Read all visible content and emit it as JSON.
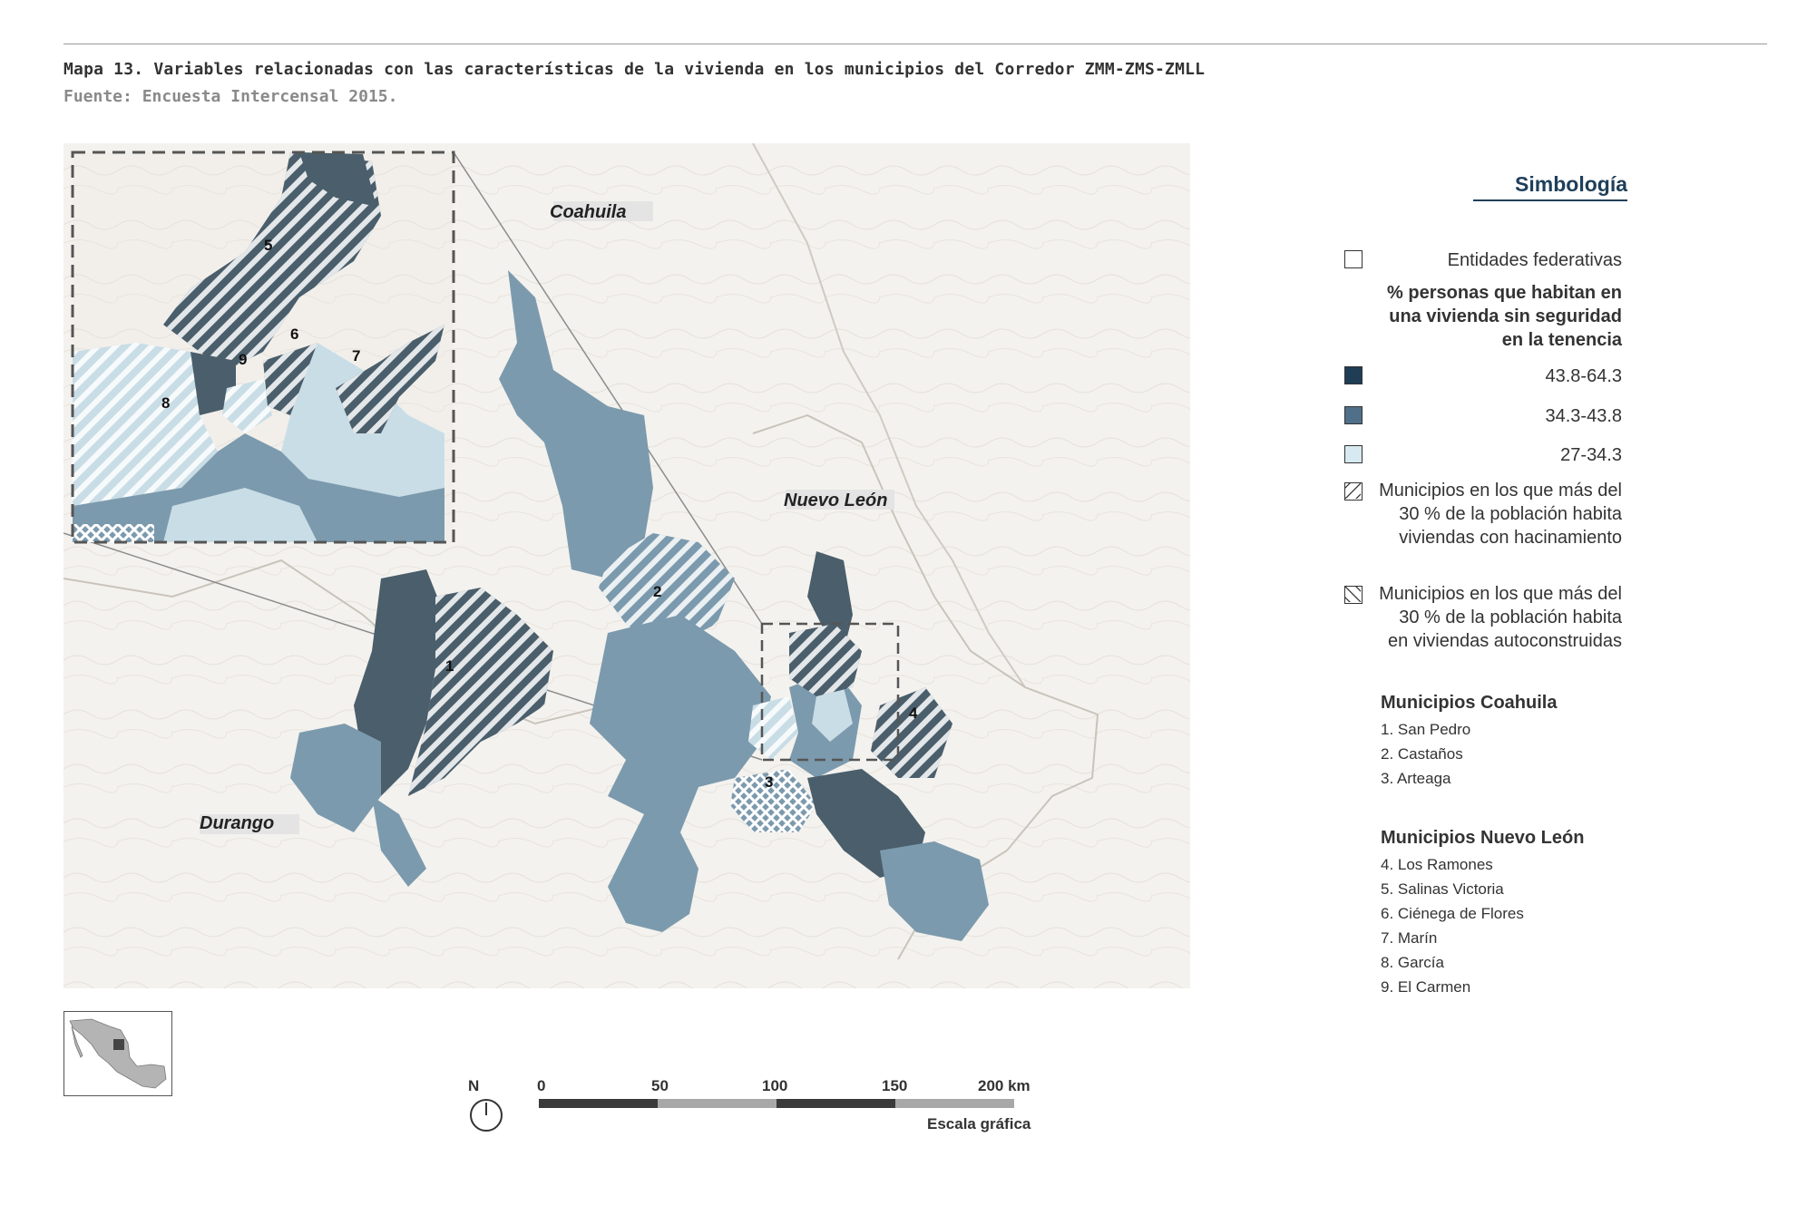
{
  "header": {
    "caption": "Mapa 13. Variables relacionadas con las características de la vivienda en los municipios del Corredor ZMM-ZMS-ZMLL",
    "source": "Fuente: Encuesta Intercensal 2015."
  },
  "map": {
    "states": [
      "Coahuila",
      "Nuevo León",
      "Durango"
    ],
    "municipio_numbers": [
      "1",
      "2",
      "3",
      "4",
      "5",
      "6",
      "7",
      "8",
      "9"
    ]
  },
  "legend": {
    "title": "Simbología",
    "entidades": "Entidades federativas",
    "tenure_heading": "% personas que habitan en una vivienda sin seguridad en la tenencia",
    "classes": [
      {
        "label": "43.8-64.3",
        "color": "#1f3d55"
      },
      {
        "label": "34.3-43.8",
        "color": "#4f7088"
      },
      {
        "label": "27-34.3",
        "color": "#d7e9f1"
      }
    ],
    "hatch_crowding": "Municipios en los que más del 30 % de la población habita viviendas con hacinamiento",
    "hatch_selfbuilt": "Municipios en los que más del 30 % de la población habita en viviendas autoconstruidas"
  },
  "municipios": {
    "coahuila_heading": "Municipios Coahuila",
    "coahuila": [
      "1. San Pedro",
      "2. Castaños",
      "3. Arteaga"
    ],
    "nl_heading": "Municipios Nuevo León",
    "nuevo_leon": [
      "4. Los Ramones",
      "5. Salinas Victoria",
      "6. Ciénega de Flores",
      "7. Marín",
      "8. García",
      "9. El Carmen"
    ]
  },
  "scale": {
    "north": "N",
    "ticks": [
      "0",
      "50",
      "100",
      "150",
      "200 km"
    ],
    "label": "Escala gráfica"
  },
  "colors": {
    "dark": "#4a5e6b",
    "medium": "#7c9aad",
    "light": "#c9dde6",
    "background": "#f2efea"
  }
}
